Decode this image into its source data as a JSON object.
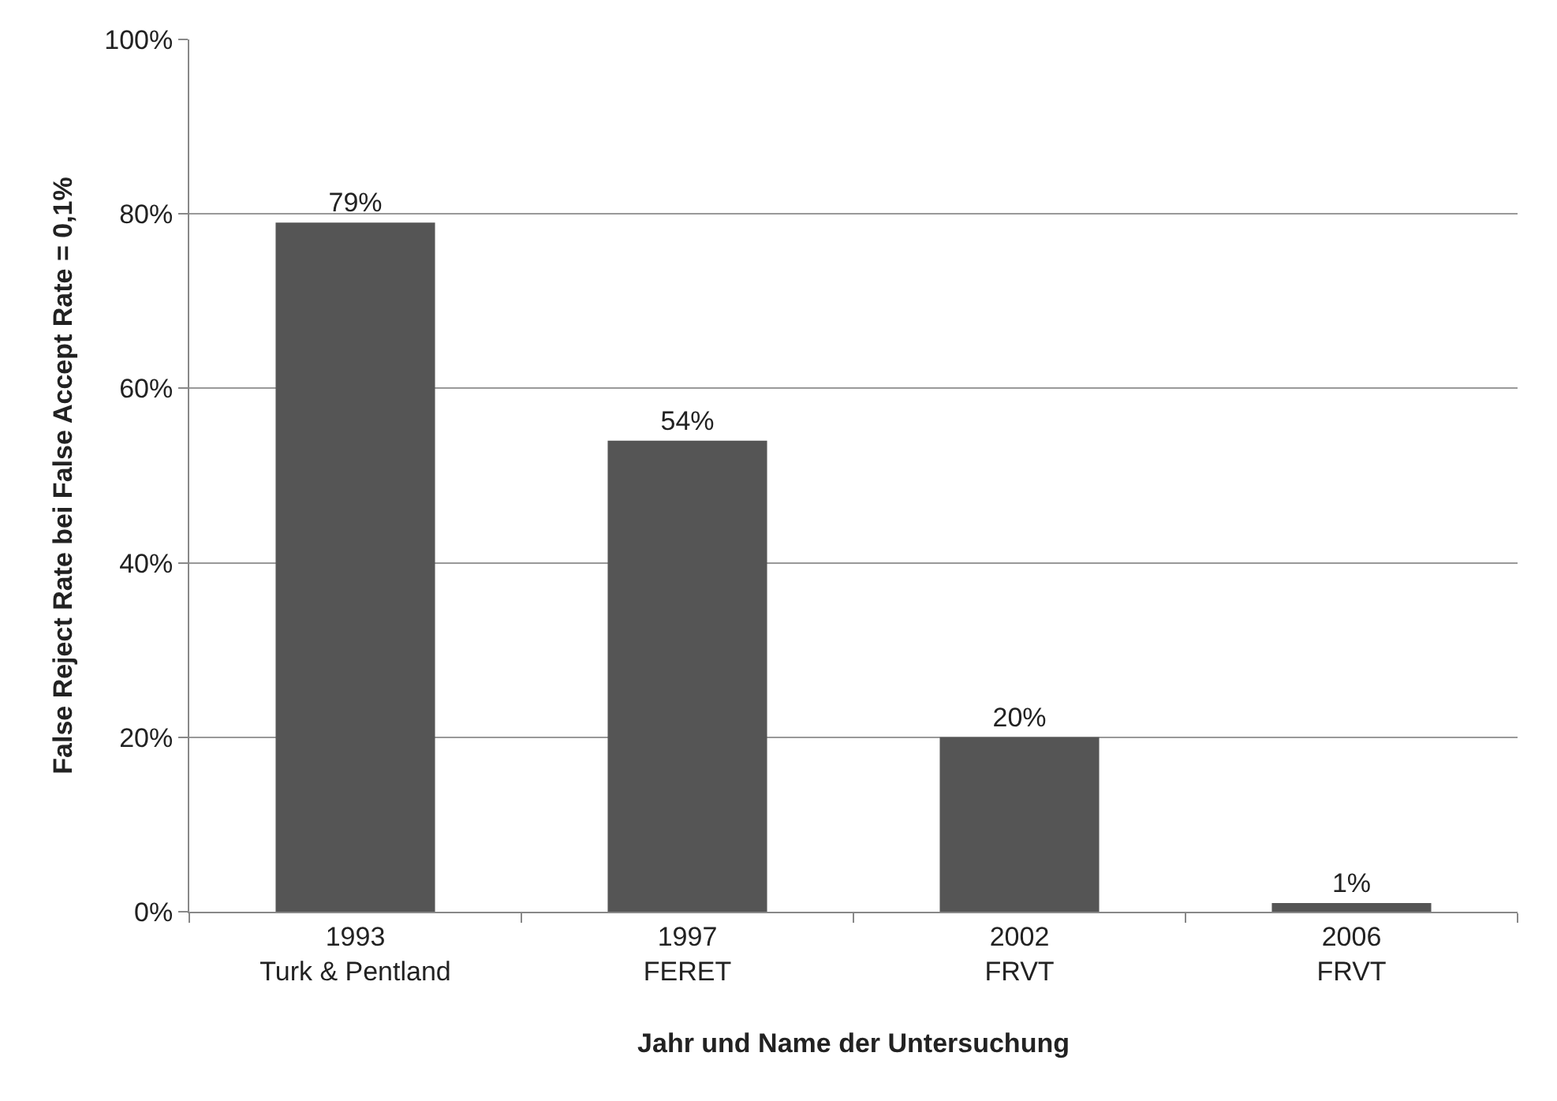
{
  "chart_data": {
    "type": "bar",
    "ylabel": "False Reject Rate bei False Accept Rate = 0,1%",
    "xlabel": "Jahr und Name der Untersuchung",
    "categories": [
      "1993\nTurk & Pentland",
      "1997\nFERET",
      "2002\nFRVT",
      "2006\nFRVT"
    ],
    "values": [
      79,
      54,
      20,
      1
    ],
    "value_labels": [
      "79%",
      "54%",
      "20%",
      "1%"
    ],
    "color": "#555555",
    "ylim": [
      0,
      100
    ],
    "yticks": [
      {
        "value": 0,
        "label": "0%"
      },
      {
        "value": 20,
        "label": "20%"
      },
      {
        "value": 40,
        "label": "40%"
      },
      {
        "value": 60,
        "label": "60%"
      },
      {
        "value": 80,
        "label": "80%"
      },
      {
        "value": 100,
        "label": "100%"
      }
    ],
    "grid": "y",
    "legend": false
  }
}
